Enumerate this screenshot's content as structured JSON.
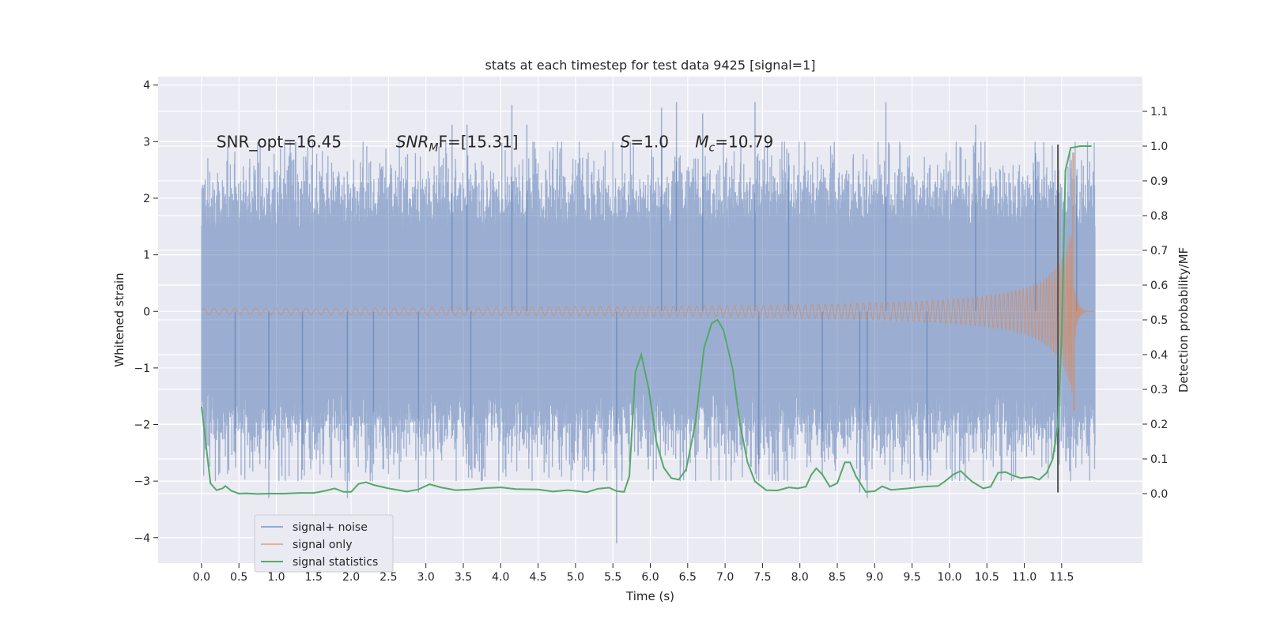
{
  "chart_data": {
    "type": "line",
    "title": "stats at each timestep for test data 9425 [signal=1]",
    "xlabel": "Time (s)",
    "ylabel": "Whitened strain",
    "y2label": "Detection probability/MF",
    "xlim": [
      -0.58,
      12.58
    ],
    "ylim": [
      -4.45,
      4.15
    ],
    "y2lim": [
      -0.2,
      1.2
    ],
    "xticks": [
      0.0,
      0.5,
      1.0,
      1.5,
      2.0,
      2.5,
      3.0,
      3.5,
      4.0,
      4.5,
      5.0,
      5.5,
      6.0,
      6.5,
      7.0,
      7.5,
      8.0,
      8.5,
      9.0,
      9.5,
      10.0,
      10.5,
      11.0,
      11.5
    ],
    "yticks": [
      -4,
      -3,
      -2,
      -1,
      0,
      1,
      2,
      3,
      4
    ],
    "y2ticks": [
      0.0,
      0.1,
      0.2,
      0.3,
      0.4,
      0.5,
      0.6,
      0.7,
      0.8,
      0.9,
      1.0,
      1.1
    ],
    "grid": true,
    "legend_position": "lower-left",
    "colors": {
      "background": "#eaeaf2",
      "grid": "#ffffff",
      "noise": "#4c72b0",
      "signal": "#dd8452",
      "stats": "#55a868",
      "marker": "#555555"
    },
    "annotations": [
      {
        "text": "SNR_opt=16.45",
        "x": 0.2,
        "y": 3.0
      },
      {
        "text": "SNR",
        "sub": "M",
        "rest": "F=[15.31]",
        "x": 2.6,
        "y": 3.0,
        "italic": true
      },
      {
        "text": "S",
        "rest": "=1.0",
        "x": 5.6,
        "y": 3.0,
        "italic": true
      },
      {
        "text": "M",
        "sub": "c",
        "rest": "=10.79",
        "x": 6.6,
        "y": 3.0,
        "italic": true
      }
    ],
    "series": [
      {
        "name": "signal+ noise",
        "kind": "noise",
        "x_start": 0.0,
        "x_end": 11.95,
        "envelope": 1.65,
        "spikes": [
          [
            0.45,
            -2.5
          ],
          [
            0.9,
            -3.3
          ],
          [
            1.35,
            -2.8
          ],
          [
            1.95,
            -3.3
          ],
          [
            2.3,
            -2.7
          ],
          [
            2.9,
            -3.2
          ],
          [
            3.35,
            3.3
          ],
          [
            3.55,
            3.3
          ],
          [
            3.6,
            -2.8
          ],
          [
            4.15,
            3.65
          ],
          [
            4.35,
            3.3
          ],
          [
            5.55,
            -4.1
          ],
          [
            6.15,
            3.6
          ],
          [
            6.35,
            3.7
          ],
          [
            6.7,
            3.5
          ],
          [
            7.4,
            3.7
          ],
          [
            7.45,
            -2.7
          ],
          [
            7.85,
            2.8
          ],
          [
            8.3,
            -2.9
          ],
          [
            8.8,
            -3.2
          ],
          [
            8.9,
            -3.3
          ],
          [
            9.15,
            3.7
          ],
          [
            9.7,
            -2.6
          ],
          [
            10.35,
            3.3
          ],
          [
            11.15,
            2.8
          ],
          [
            11.7,
            2.4
          ]
        ]
      },
      {
        "name": "signal only",
        "kind": "chirp",
        "x_start": 0.0,
        "x_end": 11.95,
        "merger_x": 11.67,
        "peak_amplitude": 2.8,
        "min_amplitude": -1.75
      },
      {
        "name": "signal statistics",
        "kind": "line",
        "axis": "y2",
        "points": [
          [
            0.0,
            0.25
          ],
          [
            0.12,
            0.03
          ],
          [
            0.2,
            0.01
          ],
          [
            0.28,
            0.015
          ],
          [
            0.32,
            0.022
          ],
          [
            0.4,
            0.008
          ],
          [
            0.5,
            0.0
          ],
          [
            0.6,
            0.001
          ],
          [
            0.75,
            -0.001
          ],
          [
            0.9,
            0.0
          ],
          [
            1.1,
            0.0
          ],
          [
            1.3,
            0.002
          ],
          [
            1.5,
            0.002
          ],
          [
            1.65,
            0.008
          ],
          [
            1.78,
            0.015
          ],
          [
            1.9,
            0.005
          ],
          [
            2.0,
            0.005
          ],
          [
            2.1,
            0.028
          ],
          [
            2.2,
            0.033
          ],
          [
            2.3,
            0.025
          ],
          [
            2.5,
            0.015
          ],
          [
            2.75,
            0.006
          ],
          [
            2.9,
            0.012
          ],
          [
            3.05,
            0.027
          ],
          [
            3.2,
            0.018
          ],
          [
            3.4,
            0.01
          ],
          [
            3.6,
            0.012
          ],
          [
            3.8,
            0.016
          ],
          [
            4.0,
            0.018
          ],
          [
            4.2,
            0.013
          ],
          [
            4.5,
            0.012
          ],
          [
            4.7,
            0.006
          ],
          [
            4.9,
            0.01
          ],
          [
            5.0,
            0.008
          ],
          [
            5.15,
            0.004
          ],
          [
            5.3,
            0.014
          ],
          [
            5.45,
            0.017
          ],
          [
            5.55,
            0.007
          ],
          [
            5.65,
            0.005
          ],
          [
            5.72,
            0.05
          ],
          [
            5.8,
            0.35
          ],
          [
            5.88,
            0.4
          ],
          [
            5.98,
            0.3
          ],
          [
            6.08,
            0.15
          ],
          [
            6.18,
            0.075
          ],
          [
            6.28,
            0.045
          ],
          [
            6.38,
            0.04
          ],
          [
            6.48,
            0.07
          ],
          [
            6.6,
            0.2
          ],
          [
            6.72,
            0.42
          ],
          [
            6.82,
            0.49
          ],
          [
            6.9,
            0.5
          ],
          [
            6.98,
            0.47
          ],
          [
            7.1,
            0.36
          ],
          [
            7.2,
            0.2
          ],
          [
            7.3,
            0.09
          ],
          [
            7.4,
            0.035
          ],
          [
            7.55,
            0.01
          ],
          [
            7.7,
            0.009
          ],
          [
            7.85,
            0.018
          ],
          [
            7.97,
            0.015
          ],
          [
            8.08,
            0.02
          ],
          [
            8.15,
            0.053
          ],
          [
            8.22,
            0.073
          ],
          [
            8.3,
            0.055
          ],
          [
            8.4,
            0.02
          ],
          [
            8.5,
            0.03
          ],
          [
            8.6,
            0.09
          ],
          [
            8.67,
            0.09
          ],
          [
            8.75,
            0.05
          ],
          [
            8.88,
            0.005
          ],
          [
            9.0,
            0.007
          ],
          [
            9.1,
            0.021
          ],
          [
            9.22,
            0.011
          ],
          [
            9.45,
            0.015
          ],
          [
            9.65,
            0.02
          ],
          [
            9.85,
            0.022
          ],
          [
            9.95,
            0.037
          ],
          [
            10.05,
            0.055
          ],
          [
            10.15,
            0.065
          ],
          [
            10.3,
            0.035
          ],
          [
            10.45,
            0.015
          ],
          [
            10.55,
            0.02
          ],
          [
            10.65,
            0.06
          ],
          [
            10.75,
            0.062
          ],
          [
            10.85,
            0.052
          ],
          [
            10.95,
            0.045
          ],
          [
            11.1,
            0.048
          ],
          [
            11.2,
            0.04
          ],
          [
            11.3,
            0.06
          ],
          [
            11.38,
            0.1
          ],
          [
            11.45,
            0.2
          ],
          [
            11.5,
            0.45
          ],
          [
            11.55,
            0.93
          ],
          [
            11.62,
            0.995
          ],
          [
            11.75,
            1.0
          ],
          [
            11.85,
            1.0
          ],
          [
            11.9,
            1.0
          ]
        ]
      }
    ],
    "vertical_marker": {
      "x": 11.45,
      "y_from": -3.2,
      "y_to": 2.95
    }
  }
}
